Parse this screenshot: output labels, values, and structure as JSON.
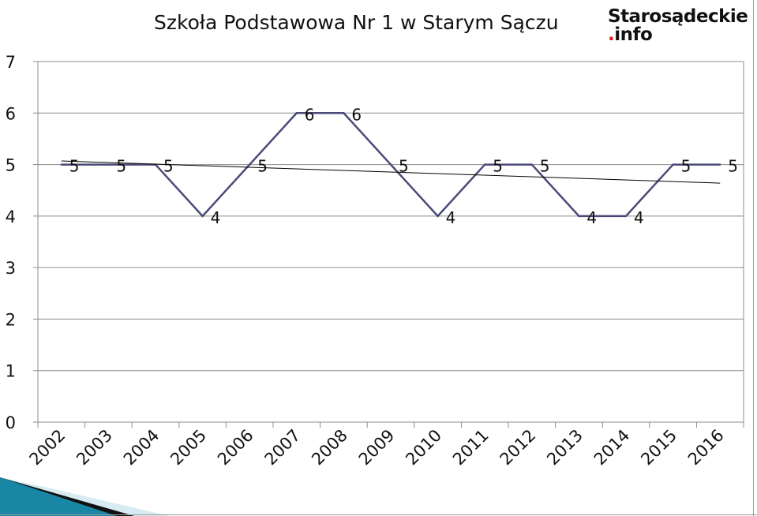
{
  "title": "Szkoła Podstawowa Nr 1 w Starym Sączu",
  "logo": {
    "main": "Starosądeckie",
    "dot": ".",
    "suffix": "info"
  },
  "chart_data": {
    "type": "line",
    "title": "Szkoła Podstawowa Nr 1 w Starym Sączu",
    "categories": [
      "2002",
      "2003",
      "2004",
      "2005",
      "2006",
      "2007",
      "2008",
      "2009",
      "2010",
      "2011",
      "2012",
      "2013",
      "2014",
      "2015",
      "2016"
    ],
    "series": [
      {
        "name": "Series 1",
        "values": [
          5,
          5,
          5,
          4,
          5,
          6,
          6,
          5,
          4,
          5,
          5,
          4,
          4,
          5,
          5
        ],
        "color": "#4a4a78"
      }
    ],
    "trendline": {
      "type": "linear",
      "start": 5.07,
      "end": 4.64,
      "color": "#000000"
    },
    "ylim": [
      0,
      7
    ],
    "yticks": [
      "0",
      "1",
      "2",
      "3",
      "4",
      "5",
      "6",
      "7"
    ],
    "grid": true,
    "data_labels": true,
    "xlabel": "",
    "ylabel": ""
  }
}
